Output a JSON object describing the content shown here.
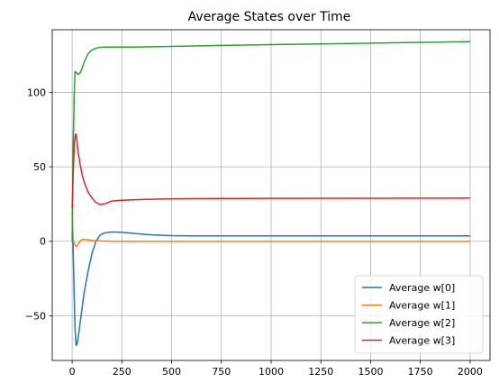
{
  "chart_data": {
    "type": "line",
    "title": "Average States over Time",
    "xlabel": "",
    "ylabel": "",
    "xlim": [
      -100,
      2100
    ],
    "ylim": [
      -80,
      142
    ],
    "xticks": [
      0,
      250,
      500,
      750,
      1000,
      1250,
      1500,
      1750,
      2000
    ],
    "xtick_labels": [
      "0",
      "250",
      "500",
      "750",
      "1000",
      "1250",
      "1500",
      "1750",
      "2000"
    ],
    "yticks": [
      -50,
      0,
      50,
      100
    ],
    "ytick_labels": [
      "−50",
      "0",
      "50",
      "100"
    ],
    "grid": true,
    "legend_position": "lower right",
    "series": [
      {
        "name": "Average w[0]",
        "color": "#1f77b4",
        "x": [
          0,
          5,
          10,
          15,
          20,
          25,
          30,
          40,
          50,
          60,
          80,
          100,
          120,
          140,
          160,
          180,
          200,
          220,
          250,
          300,
          350,
          400,
          500,
          600,
          800,
          1000,
          1500,
          2000
        ],
        "y": [
          20,
          -5,
          -35,
          -60,
          -70,
          -69,
          -65,
          -55,
          -45,
          -35,
          -20,
          -8,
          0,
          4,
          5.5,
          6,
          6.2,
          6.2,
          6,
          5.5,
          4.8,
          4.3,
          3.8,
          3.6,
          3.6,
          3.6,
          3.6,
          3.6
        ]
      },
      {
        "name": "Average w[1]",
        "color": "#ff7f0e",
        "x": [
          0,
          5,
          10,
          15,
          20,
          25,
          30,
          40,
          50,
          60,
          80,
          100,
          150,
          200,
          500,
          1000,
          1500,
          2000
        ],
        "y": [
          1,
          0.5,
          -1,
          -3,
          -3.5,
          -3,
          -2,
          0,
          1.2,
          1.3,
          1,
          0.5,
          0.2,
          0,
          0,
          0,
          0,
          0
        ]
      },
      {
        "name": "Average w[2]",
        "color": "#2ca02c",
        "x": [
          0,
          3,
          5,
          8,
          10,
          12,
          15,
          20,
          25,
          30,
          40,
          50,
          60,
          80,
          100,
          130,
          160,
          200,
          250,
          300,
          500,
          750,
          1000,
          1500,
          2000
        ],
        "y": [
          0,
          40,
          65,
          82,
          96,
          105,
          114,
          113,
          113,
          112,
          113,
          116,
          120,
          126,
          128.5,
          130,
          130.3,
          130.3,
          130.3,
          130.4,
          130.8,
          131.5,
          132,
          133,
          134
        ]
      },
      {
        "name": "Average w[3]",
        "color": "#d62728",
        "x": [
          0,
          3,
          5,
          8,
          10,
          12,
          15,
          18,
          20,
          22,
          25,
          30,
          40,
          50,
          60,
          80,
          100,
          120,
          140,
          160,
          180,
          200,
          250,
          300,
          400,
          500,
          750,
          1000,
          1500,
          2000
        ],
        "y": [
          22,
          35,
          45,
          55,
          62,
          66,
          70,
          72,
          72,
          70,
          66,
          60,
          52,
          45,
          40,
          33,
          29,
          26,
          24.8,
          25,
          26,
          27,
          27.5,
          27.8,
          28.2,
          28.5,
          28.7,
          28.8,
          28.9,
          29
        ]
      }
    ]
  }
}
